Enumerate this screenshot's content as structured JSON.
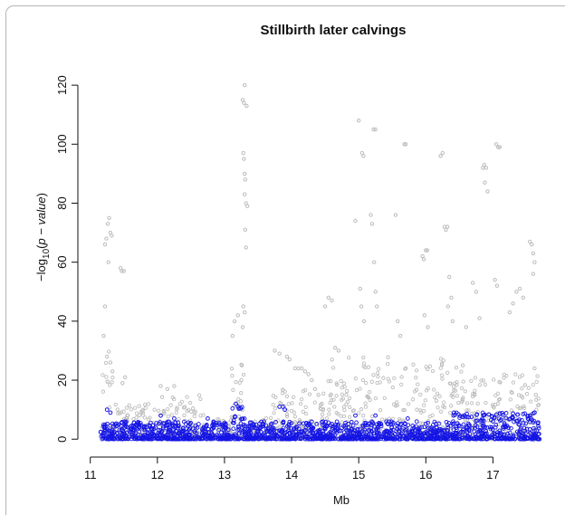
{
  "chart_data": {
    "type": "scatter",
    "title": "Stillbirth later calvings",
    "xlabel": "Mb",
    "ylabel": "-log10(p-value)",
    "ylabel_parts": {
      "prefix": "−log",
      "subscript": "10",
      "open": "(",
      "italic": "p − value",
      "close": ")"
    },
    "xlim": [
      10.95,
      17.75
    ],
    "ylim": [
      -3,
      132
    ],
    "x_ticks": [
      11,
      12,
      13,
      14,
      15,
      16,
      17
    ],
    "y_ticks": [
      0,
      20,
      40,
      60,
      80,
      100,
      120
    ],
    "grid": false,
    "colors": {
      "gray_series": "#bdbdbd",
      "blue_series": "#1515e6",
      "axis": "#111111"
    },
    "series": [
      {
        "color": "gray",
        "description_points": "prominent signal peaks (estimated)",
        "points": [
          [
            11.22,
            66
          ],
          [
            11.24,
            68
          ],
          [
            11.26,
            73
          ],
          [
            11.28,
            75
          ],
          [
            11.3,
            70
          ],
          [
            11.32,
            69
          ],
          [
            11.27,
            60
          ],
          [
            11.22,
            45
          ],
          [
            11.2,
            35
          ],
          [
            11.25,
            28
          ],
          [
            11.3,
            26
          ],
          [
            11.33,
            23
          ],
          [
            11.45,
            58
          ],
          [
            11.47,
            57
          ],
          [
            11.5,
            57
          ],
          [
            11.52,
            21
          ],
          [
            11.48,
            19
          ],
          [
            12.05,
            18
          ],
          [
            12.15,
            17
          ],
          [
            12.25,
            18
          ],
          [
            13.12,
            35
          ],
          [
            13.15,
            40
          ],
          [
            13.2,
            42
          ],
          [
            13.27,
            115
          ],
          [
            13.29,
            114
          ],
          [
            13.3,
            120
          ],
          [
            13.33,
            113
          ],
          [
            13.28,
            97
          ],
          [
            13.29,
            95
          ],
          [
            13.3,
            90
          ],
          [
            13.31,
            88
          ],
          [
            13.3,
            83
          ],
          [
            13.32,
            80
          ],
          [
            13.34,
            79
          ],
          [
            13.31,
            71
          ],
          [
            13.32,
            65
          ],
          [
            13.28,
            45
          ],
          [
            13.3,
            43
          ],
          [
            13.27,
            38
          ],
          [
            13.26,
            25
          ],
          [
            13.25,
            20
          ],
          [
            13.75,
            30
          ],
          [
            13.82,
            29
          ],
          [
            13.93,
            28
          ],
          [
            13.97,
            27
          ],
          [
            14.05,
            24
          ],
          [
            14.1,
            24
          ],
          [
            14.15,
            24
          ],
          [
            14.2,
            23
          ],
          [
            14.25,
            22
          ],
          [
            14.3,
            20
          ],
          [
            14.35,
            17
          ],
          [
            14.4,
            15
          ],
          [
            14.45,
            12
          ],
          [
            14.5,
            45
          ],
          [
            14.55,
            48
          ],
          [
            14.6,
            47
          ],
          [
            14.65,
            31
          ],
          [
            14.7,
            30
          ],
          [
            14.95,
            74
          ],
          [
            15.0,
            108
          ],
          [
            15.05,
            97
          ],
          [
            15.07,
            96
          ],
          [
            15.02,
            51
          ],
          [
            15.04,
            45
          ],
          [
            15.08,
            40
          ],
          [
            15.18,
            76
          ],
          [
            15.2,
            73
          ],
          [
            15.22,
            105
          ],
          [
            15.25,
            105
          ],
          [
            15.23,
            60
          ],
          [
            15.25,
            50
          ],
          [
            15.27,
            45
          ],
          [
            15.55,
            76
          ],
          [
            15.58,
            40
          ],
          [
            15.62,
            35
          ],
          [
            15.68,
            100
          ],
          [
            15.7,
            100
          ],
          [
            15.95,
            62
          ],
          [
            15.97,
            61
          ],
          [
            16.0,
            64
          ],
          [
            16.02,
            64
          ],
          [
            15.98,
            42
          ],
          [
            16.03,
            38
          ],
          [
            16.22,
            96
          ],
          [
            16.25,
            97
          ],
          [
            16.28,
            72
          ],
          [
            16.3,
            71
          ],
          [
            16.32,
            72
          ],
          [
            16.35,
            55
          ],
          [
            16.38,
            48
          ],
          [
            16.33,
            45
          ],
          [
            16.4,
            40
          ],
          [
            16.55,
            25
          ],
          [
            16.6,
            38
          ],
          [
            16.7,
            53
          ],
          [
            16.75,
            50
          ],
          [
            16.8,
            41
          ],
          [
            16.85,
            92
          ],
          [
            16.87,
            93
          ],
          [
            16.9,
            92
          ],
          [
            16.88,
            87
          ],
          [
            16.92,
            84
          ],
          [
            17.05,
            100
          ],
          [
            17.08,
            99
          ],
          [
            17.1,
            99
          ],
          [
            17.03,
            54
          ],
          [
            17.06,
            52
          ],
          [
            17.25,
            43
          ],
          [
            17.3,
            46
          ],
          [
            17.35,
            50
          ],
          [
            17.4,
            51
          ],
          [
            17.45,
            48
          ],
          [
            17.55,
            67
          ],
          [
            17.58,
            66
          ],
          [
            17.6,
            63
          ],
          [
            17.62,
            60
          ],
          [
            17.6,
            56
          ],
          [
            17.62,
            24
          ],
          [
            17.64,
            15
          ]
        ],
        "baseline_ranges": [
          {
            "from": 11.15,
            "to": 11.35,
            "max": 30
          },
          {
            "from": 11.35,
            "to": 12.0,
            "max": 12
          },
          {
            "from": 12.0,
            "to": 12.7,
            "max": 15
          },
          {
            "from": 12.7,
            "to": 13.1,
            "max": 7
          },
          {
            "from": 13.1,
            "to": 13.35,
            "max": 30
          },
          {
            "from": 13.35,
            "to": 13.7,
            "max": 8
          },
          {
            "from": 13.7,
            "to": 14.5,
            "max": 18
          },
          {
            "from": 14.5,
            "to": 16.6,
            "max": 28
          },
          {
            "from": 16.6,
            "to": 17.7,
            "max": 22
          }
        ]
      },
      {
        "color": "blue",
        "description_points": "dense near-baseline points (estimated)",
        "baseline_ranges": [
          {
            "from": 11.15,
            "to": 13.1,
            "max": 6
          },
          {
            "from": 13.1,
            "to": 13.3,
            "max": 11
          },
          {
            "from": 13.3,
            "to": 14.4,
            "max": 6
          },
          {
            "from": 14.4,
            "to": 16.4,
            "max": 6
          },
          {
            "from": 16.4,
            "to": 17.7,
            "max": 9
          }
        ],
        "points": [
          [
            11.25,
            10
          ],
          [
            11.3,
            9
          ],
          [
            12.05,
            8
          ],
          [
            12.25,
            7
          ],
          [
            12.75,
            7
          ],
          [
            13.17,
            12
          ],
          [
            13.2,
            11
          ],
          [
            13.82,
            11
          ],
          [
            13.87,
            11
          ],
          [
            13.9,
            10
          ],
          [
            14.95,
            8
          ],
          [
            15.25,
            8
          ],
          [
            15.73,
            7
          ],
          [
            16.42,
            9
          ],
          [
            17.55,
            8
          ],
          [
            17.62,
            9
          ]
        ]
      }
    ]
  }
}
